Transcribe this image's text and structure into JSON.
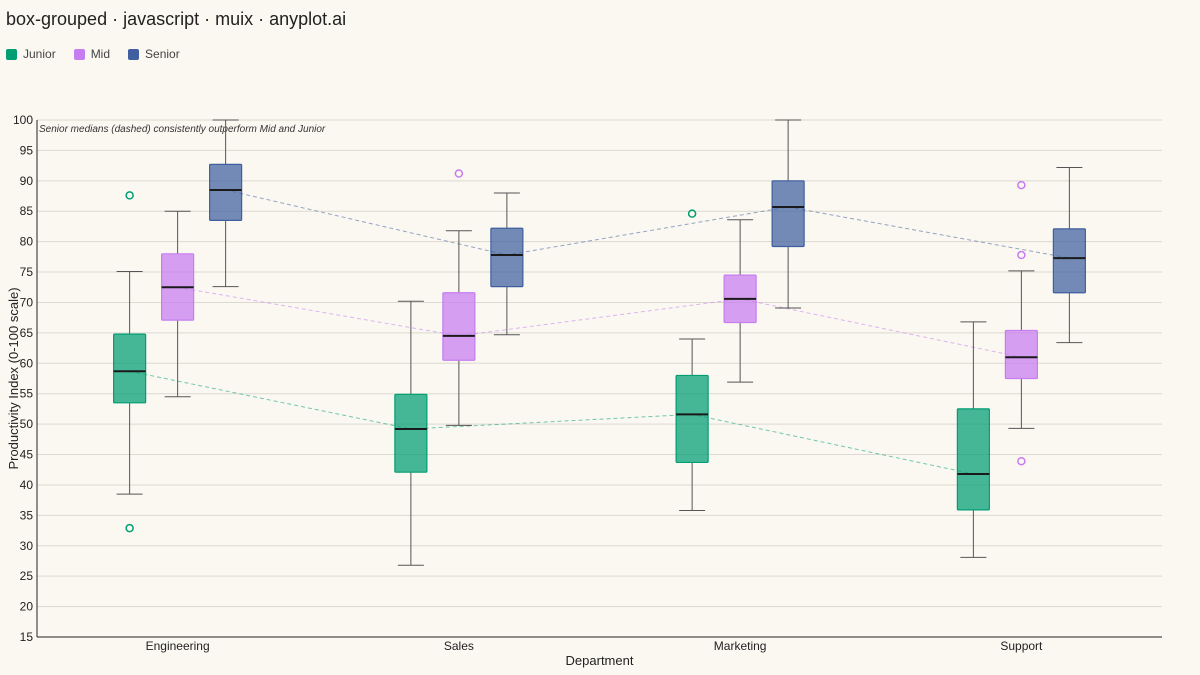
{
  "title": "box-grouped · javascript · muix · anyplot.ai",
  "chart_data": {
    "type": "box",
    "title": "box-grouped · javascript · muix · anyplot.ai",
    "xlabel": "Department",
    "ylabel": "Productivity Index (0-100 scale)",
    "ylim": [
      15,
      100
    ],
    "yticks": [
      15,
      20,
      25,
      30,
      35,
      40,
      45,
      50,
      55,
      60,
      65,
      70,
      75,
      80,
      85,
      90,
      95,
      100
    ],
    "grid": true,
    "legend_position": "top-left",
    "annotation": "Senior medians (dashed) consistently outperform Mid and Junior",
    "categories": [
      "Engineering",
      "Sales",
      "Marketing",
      "Support"
    ],
    "series": [
      {
        "name": "Junior",
        "color": "#009E73",
        "boxes": [
          {
            "min": 38.5,
            "q1": 53.5,
            "median": 58.7,
            "q3": 64.8,
            "max": 75.1,
            "outliers": [
              87.6,
              32.9
            ]
          },
          {
            "min": 26.8,
            "q1": 42.1,
            "median": 49.2,
            "q3": 54.9,
            "max": 70.2,
            "outliers": []
          },
          {
            "min": 35.8,
            "q1": 43.7,
            "median": 51.6,
            "q3": 58.0,
            "max": 64.0,
            "outliers": [
              84.6
            ]
          },
          {
            "min": 28.1,
            "q1": 35.9,
            "median": 41.8,
            "q3": 52.5,
            "max": 66.8,
            "outliers": []
          }
        ]
      },
      {
        "name": "Mid",
        "color": "#C77CF0",
        "boxes": [
          {
            "min": 54.5,
            "q1": 67.1,
            "median": 72.5,
            "q3": 78.0,
            "max": 85.0,
            "outliers": []
          },
          {
            "min": 49.8,
            "q1": 60.5,
            "median": 64.5,
            "q3": 71.6,
            "max": 81.8,
            "outliers": [
              91.2
            ]
          },
          {
            "min": 56.9,
            "q1": 66.7,
            "median": 70.6,
            "q3": 74.5,
            "max": 83.6,
            "outliers": []
          },
          {
            "min": 49.3,
            "q1": 57.5,
            "median": 61.0,
            "q3": 65.4,
            "max": 75.2,
            "outliers": [
              89.3,
              77.8,
              43.9
            ]
          }
        ]
      },
      {
        "name": "Senior",
        "color": "#3F5FA0",
        "boxes": [
          {
            "min": 72.6,
            "q1": 83.5,
            "median": 88.5,
            "q3": 92.7,
            "max": 100.0,
            "outliers": []
          },
          {
            "min": 64.7,
            "q1": 72.6,
            "median": 77.8,
            "q3": 82.2,
            "max": 88.0,
            "outliers": []
          },
          {
            "min": 69.1,
            "q1": 79.2,
            "median": 85.7,
            "q3": 90.0,
            "max": 100.0,
            "outliers": []
          },
          {
            "min": 63.4,
            "q1": 71.6,
            "median": 77.3,
            "q3": 82.1,
            "max": 92.2,
            "outliers": []
          }
        ]
      }
    ]
  }
}
